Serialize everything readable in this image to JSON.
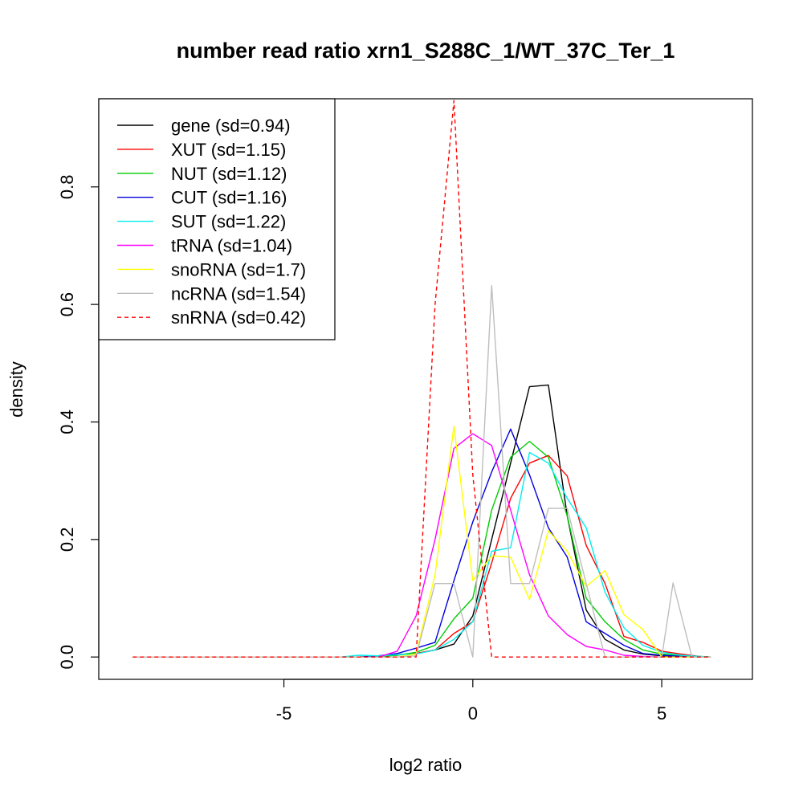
{
  "chart_data": {
    "type": "line",
    "title": "number read ratio xrn1_S288C_1/WT_37C_Ter_1",
    "xlabel": "log2 ratio",
    "ylabel": "density",
    "xlim": [
      -9.9,
      7.4
    ],
    "ylim": [
      -0.038,
      0.95
    ],
    "x_ticks": [
      {
        "value": -5,
        "label": "-5"
      },
      {
        "value": 0,
        "label": "0"
      },
      {
        "value": 5,
        "label": "5"
      }
    ],
    "y_ticks": [
      {
        "value": 0.0,
        "label": "0.0"
      },
      {
        "value": 0.2,
        "label": "0.2"
      },
      {
        "value": 0.4,
        "label": "0.4"
      },
      {
        "value": 0.6,
        "label": "0.6"
      },
      {
        "value": 0.8,
        "label": "0.8"
      }
    ],
    "grid": false,
    "legend_position": "top-left",
    "series": [
      {
        "name": "gene (sd=0.94)",
        "color": "#000000",
        "dash": "solid",
        "x": [
          -9.0,
          -3.0,
          -2.5,
          -2.0,
          -1.5,
          -1.0,
          -0.5,
          0.0,
          0.5,
          1.0,
          1.5,
          2.0,
          2.5,
          3.0,
          3.5,
          4.0,
          4.5,
          5.0,
          5.5,
          6.0,
          6.3
        ],
        "y": [
          0,
          0,
          0.002,
          0.004,
          0.006,
          0.012,
          0.022,
          0.07,
          0.2,
          0.33,
          0.46,
          0.463,
          0.24,
          0.08,
          0.03,
          0.012,
          0.005,
          0.002,
          0.001,
          0,
          0
        ]
      },
      {
        "name": "XUT (sd=1.15)",
        "color": "#ff0000",
        "dash": "solid",
        "x": [
          -9.0,
          -3.0,
          -2.5,
          -2.0,
          -1.5,
          -1.0,
          -0.5,
          0.0,
          0.5,
          1.0,
          1.5,
          2.0,
          2.5,
          3.0,
          3.5,
          4.0,
          4.5,
          5.0,
          5.5,
          6.0,
          6.3
        ],
        "y": [
          0,
          0,
          0.002,
          0.004,
          0.006,
          0.012,
          0.04,
          0.06,
          0.16,
          0.27,
          0.33,
          0.343,
          0.308,
          0.19,
          0.125,
          0.035,
          0.025,
          0.01,
          0.005,
          0.001,
          0
        ]
      },
      {
        "name": "NUT (sd=1.12)",
        "color": "#00cc00",
        "dash": "solid",
        "x": [
          -9.0,
          -3.0,
          -2.5,
          -2.0,
          -1.5,
          -1.0,
          -0.5,
          0.0,
          0.5,
          1.0,
          1.5,
          2.0,
          2.5,
          3.0,
          3.5,
          4.0,
          4.5,
          5.0,
          5.5,
          6.0,
          6.3
        ],
        "y": [
          0,
          0,
          0.001,
          0.003,
          0.008,
          0.02,
          0.065,
          0.1,
          0.25,
          0.34,
          0.367,
          0.34,
          0.24,
          0.1,
          0.06,
          0.03,
          0.012,
          0.005,
          0.002,
          0.001,
          0
        ]
      },
      {
        "name": "CUT (sd=1.16)",
        "color": "#0000dd",
        "dash": "solid",
        "x": [
          -9.0,
          -3.0,
          -2.5,
          -2.0,
          -1.5,
          -1.0,
          -0.5,
          0.0,
          0.5,
          1.0,
          1.5,
          2.0,
          2.5,
          3.0,
          3.5,
          4.0,
          4.5,
          5.0,
          5.5,
          6.0,
          6.3
        ],
        "y": [
          0,
          0,
          0.002,
          0.006,
          0.015,
          0.025,
          0.13,
          0.23,
          0.315,
          0.388,
          0.31,
          0.22,
          0.17,
          0.06,
          0.04,
          0.02,
          0.006,
          0.003,
          0.001,
          0,
          0
        ]
      },
      {
        "name": "SUT (sd=1.22)",
        "color": "#00eeee",
        "dash": "solid",
        "x": [
          -9.0,
          -3.5,
          -3.0,
          -2.5,
          -2.0,
          -1.5,
          -1.0,
          -0.5,
          0.0,
          0.5,
          1.0,
          1.5,
          2.0,
          2.5,
          3.0,
          3.5,
          4.0,
          4.5,
          5.0,
          5.5,
          6.0,
          6.3
        ],
        "y": [
          0,
          0,
          0.003,
          0.002,
          0.004,
          0.005,
          0.012,
          0.03,
          0.06,
          0.18,
          0.186,
          0.348,
          0.33,
          0.27,
          0.22,
          0.11,
          0.05,
          0.02,
          0.008,
          0.003,
          0.001,
          0
        ]
      },
      {
        "name": "tRNA (sd=1.04)",
        "color": "#ff00ff",
        "dash": "solid",
        "x": [
          -9.0,
          -2.5,
          -2.0,
          -1.5,
          -1.0,
          -0.5,
          0.0,
          0.5,
          1.0,
          1.5,
          2.0,
          2.5,
          3.0,
          3.5,
          4.0,
          4.5,
          5.0,
          6.3
        ],
        "y": [
          0,
          0,
          0.01,
          0.07,
          0.2,
          0.355,
          0.38,
          0.36,
          0.25,
          0.14,
          0.07,
          0.038,
          0.018,
          0.012,
          0.003,
          0.001,
          0,
          0
        ]
      },
      {
        "name": "snoRNA (sd=1.7)",
        "color": "#ffff00",
        "dash": "solid",
        "x": [
          -9.0,
          -2.0,
          -1.5,
          -1.0,
          -0.5,
          0.0,
          0.5,
          1.0,
          1.5,
          2.0,
          2.5,
          3.0,
          3.5,
          4.0,
          4.5,
          5.0,
          5.5,
          6.3
        ],
        "y": [
          0,
          0,
          0.005,
          0.14,
          0.393,
          0.13,
          0.172,
          0.17,
          0.098,
          0.215,
          0.18,
          0.12,
          0.147,
          0.072,
          0.047,
          0.0,
          0,
          0
        ]
      },
      {
        "name": "ncRNA (sd=1.54)",
        "color": "#bebebe",
        "dash": "solid",
        "x": [
          -9.0,
          -2.0,
          -1.5,
          -1.0,
          -0.5,
          0.0,
          0.5,
          1.0,
          1.5,
          2.0,
          2.5,
          3.0,
          3.5,
          4.0,
          4.5,
          5.0,
          5.3,
          5.8,
          6.3
        ],
        "y": [
          0,
          0,
          0.002,
          0.125,
          0.125,
          0.0,
          0.632,
          0.125,
          0.125,
          0.253,
          0.253,
          0.125,
          0.0,
          0.0,
          0.0,
          0.0,
          0.126,
          0.0,
          0
        ]
      },
      {
        "name": "snRNA (sd=0.42)",
        "color": "#ff0000",
        "dash": "dashed",
        "x": [
          -9.0,
          -1.5,
          -1.0,
          -0.5,
          0.0,
          0.5,
          1.0,
          6.3
        ],
        "y": [
          0,
          0,
          0.6,
          0.947,
          0.31,
          0.0,
          0,
          0
        ]
      }
    ]
  }
}
